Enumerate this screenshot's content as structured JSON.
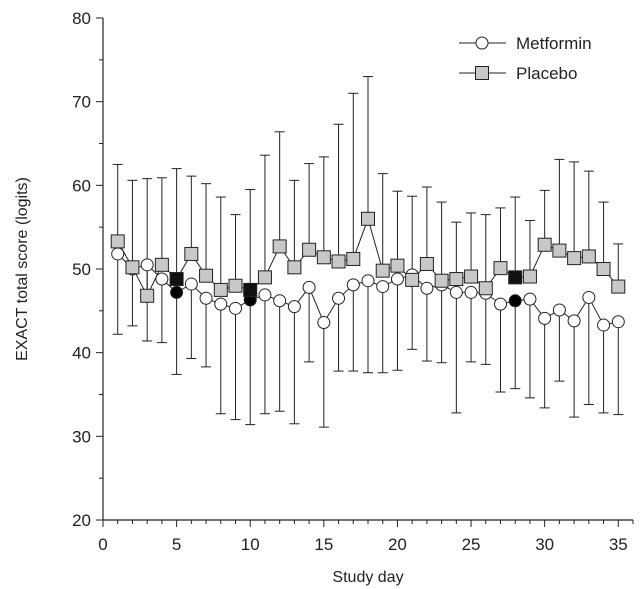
{
  "chart_data": {
    "type": "line",
    "title": "",
    "xlabel": "Study day",
    "ylabel": "EXACT total score (logits)",
    "xlim": [
      0,
      36
    ],
    "ylim": [
      20,
      80
    ],
    "xticks": [
      0,
      5,
      10,
      15,
      20,
      25,
      30,
      35
    ],
    "yticks": [
      20,
      30,
      40,
      50,
      60,
      70,
      80
    ],
    "grid": false,
    "legend_position": "top-right",
    "x": [
      1,
      2,
      3,
      4,
      5,
      6,
      7,
      8,
      9,
      10,
      11,
      12,
      13,
      14,
      15,
      16,
      17,
      18,
      19,
      20,
      21,
      22,
      23,
      24,
      25,
      26,
      27,
      28,
      29,
      30,
      31,
      32,
      33,
      34,
      35
    ],
    "series": [
      {
        "name": "Metformin",
        "marker": "circle",
        "color": "#ffffff",
        "highlight_color": "#000000",
        "highlight_x": [
          5,
          10,
          28
        ],
        "values": [
          51.8,
          50.0,
          50.5,
          48.8,
          47.2,
          48.2,
          46.5,
          45.8,
          45.3,
          46.3,
          46.9,
          46.2,
          45.5,
          47.8,
          43.6,
          46.5,
          48.1,
          48.6,
          47.9,
          48.8,
          49.3,
          47.7,
          48.1,
          47.2,
          47.2,
          47.1,
          45.8,
          46.2,
          46.4,
          44.1,
          45.1,
          43.8,
          46.6,
          43.3,
          43.7
        ],
        "error_low": [
          42.2,
          43.2,
          41.4,
          41.2,
          37.4,
          39.3,
          38.3,
          32.7,
          32.0,
          31.4,
          32.7,
          33.0,
          31.5,
          38.9,
          31.1,
          37.8,
          37.8,
          37.6,
          37.6,
          37.9,
          40.4,
          39.0,
          38.8,
          32.8,
          38.9,
          38.6,
          35.3,
          35.7,
          34.6,
          33.4,
          36.6,
          32.3,
          33.8,
          32.8,
          32.6
        ]
      },
      {
        "name": "Placebo",
        "marker": "square",
        "color": "#c8c8c8",
        "highlight_color": "#111111",
        "highlight_x": [
          5,
          10,
          28
        ],
        "values": [
          53.3,
          50.2,
          46.8,
          50.5,
          48.8,
          51.8,
          49.2,
          47.5,
          48.0,
          47.5,
          49.0,
          52.7,
          50.2,
          52.3,
          51.4,
          50.9,
          51.2,
          56.0,
          49.8,
          50.4,
          48.7,
          50.6,
          48.6,
          48.8,
          49.1,
          47.7,
          50.1,
          49.0,
          49.1,
          52.9,
          52.2,
          51.3,
          51.5,
          50.0,
          47.9
        ],
        "error_high": [
          62.5,
          60.6,
          60.8,
          60.9,
          62.0,
          61.1,
          60.2,
          58.6,
          56.5,
          59.5,
          63.6,
          66.4,
          60.6,
          62.6,
          63.4,
          67.3,
          71.0,
          73.0,
          61.4,
          59.3,
          58.7,
          59.8,
          58.0,
          55.6,
          56.7,
          56.5,
          57.3,
          58.6,
          55.8,
          59.4,
          63.1,
          62.8,
          61.7,
          58.0,
          53.0
        ]
      }
    ]
  }
}
